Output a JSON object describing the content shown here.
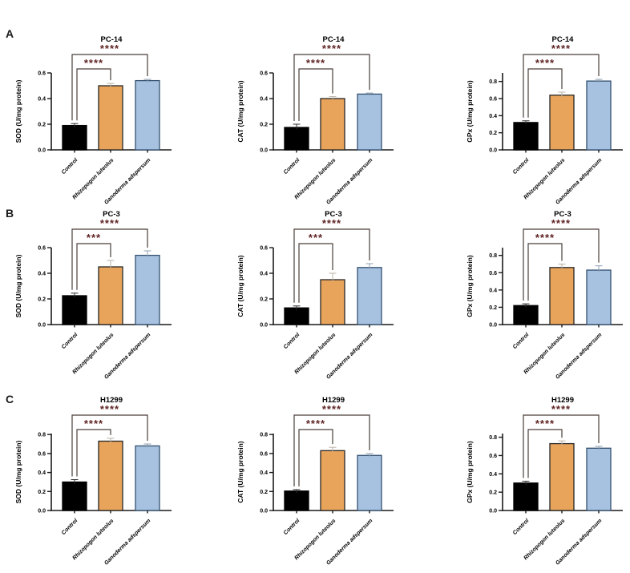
{
  "figure": {
    "panels": [
      {
        "label": "A",
        "cell_line": "PC-14"
      },
      {
        "label": "B",
        "cell_line": "PC-3"
      },
      {
        "label": "C",
        "cell_line": "H1299"
      }
    ]
  },
  "style": {
    "bar_fills": [
      "#000000",
      "#E9A45C",
      "#A7C2E0"
    ],
    "bar_strokes": [
      "#000000",
      "#262626",
      "#33506F"
    ],
    "error_colors": [
      "#2e2e2e",
      "#b9b2a4",
      "#8fa0b0"
    ],
    "bracket_color": "#4a3f39",
    "star_color": "#5e2323",
    "axis_color": "#1a1a1a",
    "text_color": "#000000"
  },
  "chart_data": [
    {
      "type": "bar",
      "panel": "A",
      "title": "PC-14",
      "ylabel": "SOD (U/mg protein)",
      "categories": [
        "Control",
        "Rhizopogon luteolus",
        "Ganoderma adspersum"
      ],
      "values": [
        0.19,
        0.5,
        0.54
      ],
      "errors": [
        0.015,
        0.018,
        0.01
      ],
      "ytick_labels": [
        "0.0",
        "0.2",
        "0.4",
        "0.6"
      ],
      "yticks": [
        0,
        0.2,
        0.4,
        0.6
      ],
      "ylim": [
        0,
        0.6
      ],
      "axis_top": 0.6,
      "significance": [
        {
          "from": 0,
          "to": 1,
          "stars": "****"
        },
        {
          "from": 0,
          "to": 2,
          "stars": "****"
        }
      ]
    },
    {
      "type": "bar",
      "panel": "A",
      "title": "PC-14",
      "ylabel": "CAT (U/mg protein)",
      "categories": [
        "Control",
        "Rhizopogon luteolus",
        "Ganoderma adspersum"
      ],
      "values": [
        0.175,
        0.4,
        0.435
      ],
      "errors": [
        0.025,
        0.015,
        0.008
      ],
      "ytick_labels": [
        "0.0",
        "0.2",
        "0.4",
        "0.6"
      ],
      "yticks": [
        0,
        0.2,
        0.4,
        0.6
      ],
      "ylim": [
        0,
        0.6
      ],
      "axis_top": 0.6,
      "significance": [
        {
          "from": 0,
          "to": 1,
          "stars": "****"
        },
        {
          "from": 0,
          "to": 2,
          "stars": "****"
        }
      ]
    },
    {
      "type": "bar",
      "panel": "A",
      "title": "PC-14",
      "ylabel": "GPx (U/mg protein)",
      "categories": [
        "Control",
        "Rhizopogon luteolus",
        "Ganoderma adspersum"
      ],
      "values": [
        0.32,
        0.64,
        0.805
      ],
      "errors": [
        0.02,
        0.035,
        0.02
      ],
      "ytick_labels": [
        "0.0",
        "0.2",
        "0.4",
        "0.6",
        "0.8"
      ],
      "yticks": [
        0,
        0.2,
        0.4,
        0.6,
        0.8
      ],
      "ylim": [
        0,
        0.8
      ],
      "axis_top": 0.9,
      "significance": [
        {
          "from": 0,
          "to": 1,
          "stars": "****"
        },
        {
          "from": 0,
          "to": 2,
          "stars": "****"
        }
      ]
    },
    {
      "type": "bar",
      "panel": "B",
      "title": "PC-3",
      "ylabel": "SOD (U/mg protein)",
      "categories": [
        "Control",
        "Rhizopogon luteolus",
        "Ganoderma adspersum"
      ],
      "values": [
        0.225,
        0.45,
        0.54
      ],
      "errors": [
        0.02,
        0.05,
        0.035
      ],
      "ytick_labels": [
        "0.0",
        "0.2",
        "0.4",
        "0.6"
      ],
      "yticks": [
        0,
        0.2,
        0.4,
        0.6
      ],
      "ylim": [
        0,
        0.6
      ],
      "axis_top": 0.6,
      "significance": [
        {
          "from": 0,
          "to": 1,
          "stars": "***"
        },
        {
          "from": 0,
          "to": 2,
          "stars": "****"
        }
      ]
    },
    {
      "type": "bar",
      "panel": "B",
      "title": "PC-3",
      "ylabel": "CAT (U/mg protein)",
      "categories": [
        "Control",
        "Rhizopogon luteolus",
        "Ganoderma adspersum"
      ],
      "values": [
        0.13,
        0.35,
        0.445
      ],
      "errors": [
        0.015,
        0.05,
        0.03
      ],
      "ytick_labels": [
        "0.0",
        "0.2",
        "0.4",
        "0.6"
      ],
      "yticks": [
        0,
        0.2,
        0.4,
        0.6
      ],
      "ylim": [
        0,
        0.6
      ],
      "axis_top": 0.6,
      "significance": [
        {
          "from": 0,
          "to": 1,
          "stars": "***"
        },
        {
          "from": 0,
          "to": 2,
          "stars": "****"
        }
      ]
    },
    {
      "type": "bar",
      "panel": "B",
      "title": "PC-3",
      "ylabel": "GPx (U/mg protein)",
      "categories": [
        "Control",
        "Rhizopogon luteolus",
        "Ganoderma adspersum"
      ],
      "values": [
        0.22,
        0.66,
        0.63
      ],
      "errors": [
        0.02,
        0.04,
        0.05
      ],
      "ytick_labels": [
        "0.0",
        "0.2",
        "0.4",
        "0.6",
        "0.8"
      ],
      "yticks": [
        0,
        0.2,
        0.4,
        0.6,
        0.8
      ],
      "ylim": [
        0,
        0.8
      ],
      "axis_top": 0.89,
      "significance": [
        {
          "from": 0,
          "to": 1,
          "stars": "****"
        },
        {
          "from": 0,
          "to": 2,
          "stars": "****"
        }
      ]
    },
    {
      "type": "bar",
      "panel": "C",
      "title": "H1299",
      "ylabel": "SOD (U/mg protein)",
      "categories": [
        "Control",
        "Rhizopogon luteolus",
        "Ganoderma adspersum"
      ],
      "values": [
        0.3,
        0.73,
        0.68
      ],
      "errors": [
        0.025,
        0.03,
        0.02
      ],
      "ytick_labels": [
        "0.0",
        "0.2",
        "0.4",
        "0.6",
        "0.8"
      ],
      "yticks": [
        0,
        0.2,
        0.4,
        0.6,
        0.8
      ],
      "ylim": [
        0,
        0.8
      ],
      "axis_top": 0.81,
      "significance": [
        {
          "from": 0,
          "to": 1,
          "stars": "****"
        },
        {
          "from": 0,
          "to": 2,
          "stars": "****"
        }
      ]
    },
    {
      "type": "bar",
      "panel": "C",
      "title": "H1299",
      "ylabel": "CAT (U/mg protein)",
      "categories": [
        "Control",
        "Rhizopogon luteolus",
        "Ganoderma adspersum"
      ],
      "values": [
        0.205,
        0.63,
        0.58
      ],
      "errors": [
        0.015,
        0.035,
        0.02
      ],
      "ytick_labels": [
        "0.0",
        "0.2",
        "0.4",
        "0.6",
        "0.8"
      ],
      "yticks": [
        0,
        0.2,
        0.4,
        0.6,
        0.8
      ],
      "ylim": [
        0,
        0.8
      ],
      "axis_top": 0.81,
      "significance": [
        {
          "from": 0,
          "to": 1,
          "stars": "****"
        },
        {
          "from": 0,
          "to": 2,
          "stars": "****"
        }
      ]
    },
    {
      "type": "bar",
      "panel": "C",
      "title": "H1299",
      "ylabel": "GPx (U/mg protein)",
      "categories": [
        "Control",
        "Rhizopogon luteolus",
        "Ganoderma adspersum"
      ],
      "values": [
        0.3,
        0.73,
        0.68
      ],
      "errors": [
        0.02,
        0.03,
        0.02
      ],
      "ytick_labels": [
        "0.0",
        "0.2",
        "0.4",
        "0.6",
        "0.8"
      ],
      "yticks": [
        0,
        0.2,
        0.4,
        0.6,
        0.8
      ],
      "ylim": [
        0,
        0.8
      ],
      "axis_top": 0.84,
      "significance": [
        {
          "from": 0,
          "to": 1,
          "stars": "****"
        },
        {
          "from": 0,
          "to": 2,
          "stars": "****"
        }
      ]
    }
  ]
}
